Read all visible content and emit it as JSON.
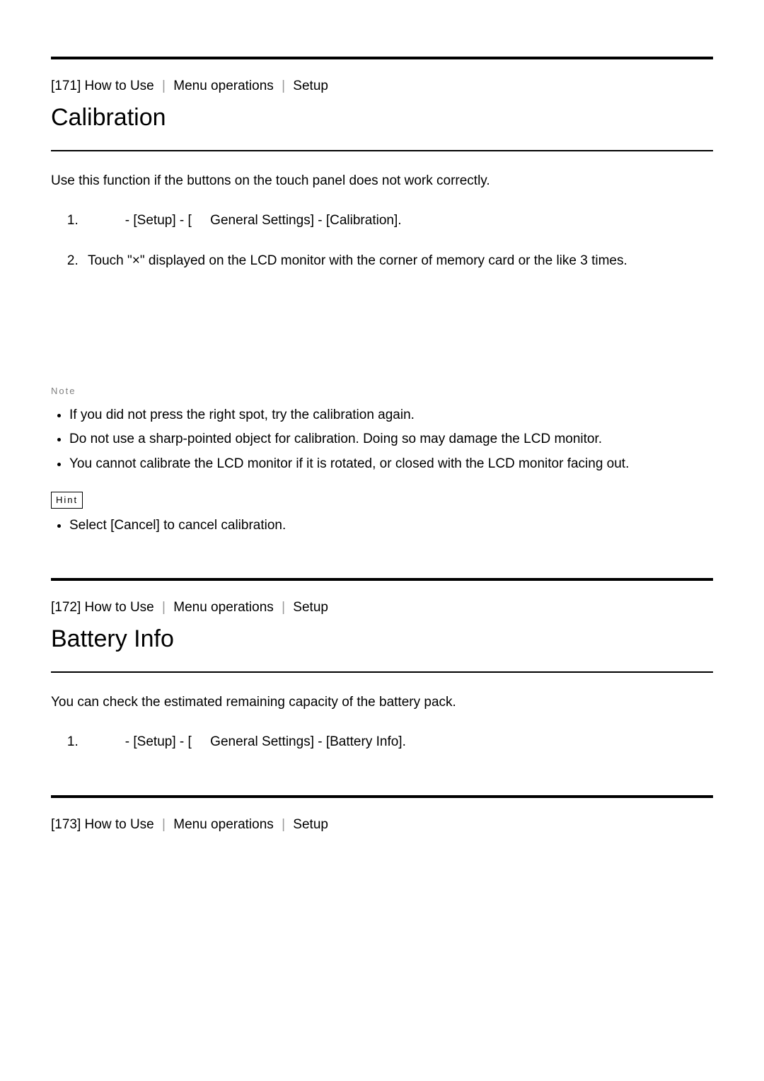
{
  "sections": [
    {
      "id": "s171",
      "breadcrumb": {
        "number": "[171]",
        "parts": [
          "How to Use",
          "Menu operations",
          "Setup"
        ]
      },
      "title": "Calibration",
      "intro": "Use this function if the buttons on the touch panel does not work correctly.",
      "steps": [
        "          - [Setup] - [     General Settings] - [Calibration].",
        "Touch \"×\" displayed on the LCD monitor with the corner of memory card or the like 3 times."
      ],
      "note_label": "Note",
      "notes": [
        "If you did not press the right spot, try the calibration again.",
        "Do not use a sharp-pointed object for calibration. Doing so may damage the LCD monitor.",
        "You cannot calibrate the LCD monitor if it is rotated, or closed with the LCD monitor facing out."
      ],
      "hint_label": "Hint",
      "hints": [
        "Select [Cancel] to cancel calibration."
      ]
    },
    {
      "id": "s172",
      "breadcrumb": {
        "number": "[172]",
        "parts": [
          "How to Use",
          "Menu operations",
          "Setup"
        ]
      },
      "title": "Battery Info",
      "intro": "You can check the estimated remaining capacity of the battery pack.",
      "steps": [
        "          - [Setup] - [     General Settings] - [Battery Info]."
      ]
    },
    {
      "id": "s173",
      "breadcrumb": {
        "number": "[173]",
        "parts": [
          "How to Use",
          "Menu operations",
          "Setup"
        ]
      }
    }
  ]
}
